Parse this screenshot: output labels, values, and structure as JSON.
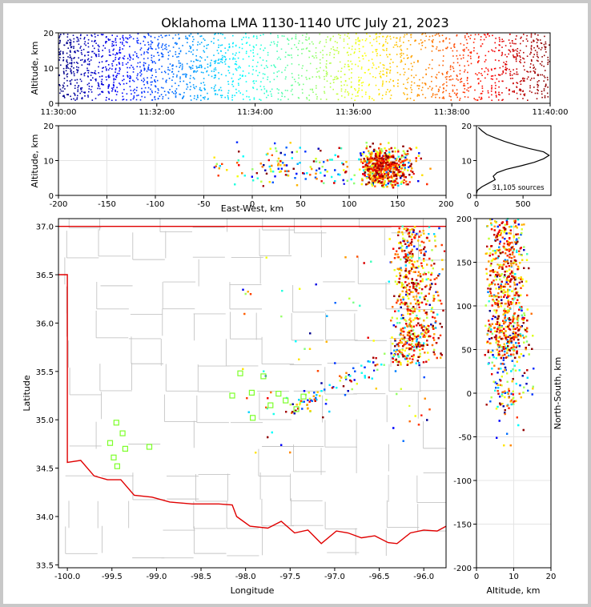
{
  "title": "Oklahoma LMA 1130-1140 UTC July 21, 2023",
  "sources_label": "31,105 sources",
  "chart_data": [
    {
      "panel": "time-height",
      "type": "scatter",
      "xlabel": "",
      "ylabel": "Altitude, km",
      "xticks": [
        "11:30:00",
        "11:32:00",
        "11:34:00",
        "11:36:00",
        "11:38:00",
        "11:40:00"
      ],
      "xlim_min": [
        0,
        10
      ],
      "ylim": [
        0,
        20
      ],
      "yticks": [
        0,
        10,
        20
      ],
      "colormap": "jet, colored by time",
      "density_by_minute": [
        1.0,
        0.95,
        0.85,
        0.6,
        0.45,
        0.55,
        0.6,
        0.7,
        0.65,
        0.75
      ]
    },
    {
      "panel": "east-west-height",
      "type": "scatter",
      "xlabel": "East-West, km",
      "ylabel": "Altitude, km",
      "xlim": [
        -200,
        200
      ],
      "xticks": [
        -200,
        -150,
        -100,
        -50,
        0,
        50,
        100,
        150,
        200
      ],
      "ylim": [
        0,
        20
      ],
      "yticks": [
        0,
        10,
        20
      ],
      "grid": true
    },
    {
      "panel": "altitude-histogram",
      "type": "line",
      "xlim": [
        0,
        800
      ],
      "xticks": [
        0,
        500
      ],
      "ylim": [
        0,
        20
      ],
      "yticks": [
        0,
        10,
        20
      ],
      "profile": [
        [
          0,
          0.5
        ],
        [
          10,
          1.5
        ],
        [
          60,
          2.5
        ],
        [
          130,
          3.5
        ],
        [
          200,
          4.5
        ],
        [
          180,
          5.5
        ],
        [
          220,
          6.5
        ],
        [
          320,
          7.5
        ],
        [
          480,
          8.5
        ],
        [
          620,
          9.5
        ],
        [
          720,
          10.5
        ],
        [
          780,
          11.5
        ],
        [
          720,
          12.5
        ],
        [
          560,
          13.5
        ],
        [
          420,
          14.5
        ],
        [
          300,
          15.5
        ],
        [
          200,
          16.5
        ],
        [
          110,
          17.5
        ],
        [
          60,
          18.5
        ],
        [
          20,
          19.5
        ]
      ]
    },
    {
      "panel": "plan-view",
      "type": "scatter",
      "xlabel": "Longitude",
      "ylabel": "Latitude",
      "xlim": [
        -100.1,
        -95.75
      ],
      "ylim": [
        33.47,
        37.08
      ],
      "xticks": [
        -100.0,
        -99.5,
        -99.0,
        -98.5,
        -98.0,
        -97.5,
        -97.0,
        -96.5,
        -96.0
      ],
      "yticks": [
        33.5,
        34.0,
        34.5,
        35.0,
        35.5,
        36.0,
        36.5,
        37.0
      ],
      "stations": [
        [
          -99.45,
          34.97
        ],
        [
          -99.38,
          34.86
        ],
        [
          -99.52,
          34.76
        ],
        [
          -99.35,
          34.7
        ],
        [
          -99.48,
          34.61
        ],
        [
          -99.44,
          34.52
        ],
        [
          -99.08,
          34.72
        ],
        [
          -98.06,
          35.48
        ],
        [
          -97.8,
          35.45
        ],
        [
          -98.15,
          35.25
        ],
        [
          -97.93,
          35.28
        ],
        [
          -97.92,
          35.02
        ],
        [
          -97.72,
          35.15
        ],
        [
          -97.63,
          35.27
        ],
        [
          -97.55,
          35.2
        ],
        [
          -97.35,
          35.24
        ],
        [
          -97.43,
          35.11
        ]
      ]
    },
    {
      "panel": "north-south-height",
      "type": "scatter",
      "xlabel": "Altitude, km",
      "ylabel": "North-South, km",
      "xlim": [
        0,
        20
      ],
      "xticks": [
        0,
        10,
        20
      ],
      "ylim": [
        -200,
        200
      ],
      "yticks": [
        -200,
        -150,
        -100,
        -50,
        0,
        50,
        100,
        150,
        200
      ],
      "grid": true
    }
  ]
}
